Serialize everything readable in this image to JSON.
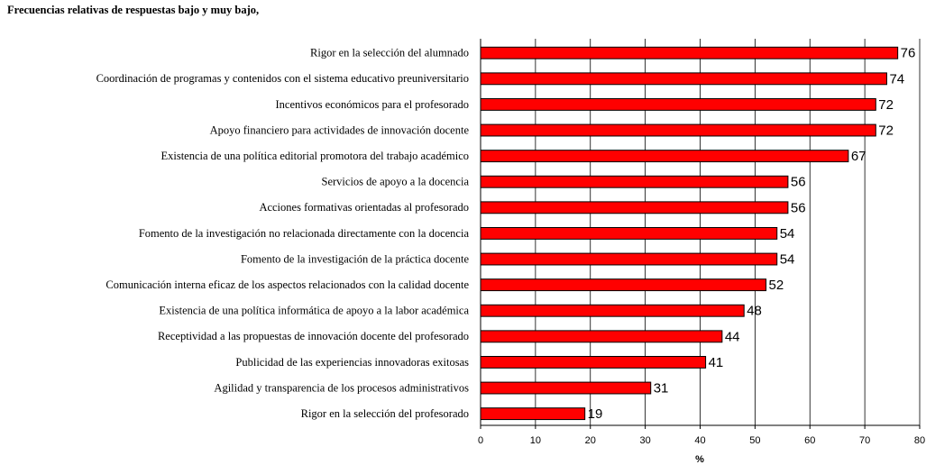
{
  "chart_data": {
    "type": "bar",
    "orientation": "horizontal",
    "title": "Frecuencias relativas de respuestas bajo y muy bajo,",
    "xlabel": "%",
    "categories": [
      "Rigor en la selección del alumnado",
      "Coordinación de programas y contenidos con el sistema educativo preuniversitario",
      "Incentivos económicos para el profesorado",
      "Apoyo financiero para actividades de innovación docente",
      "Existencia de una política editorial promotora del trabajo académico",
      "Servicios de apoyo a la docencia",
      "Acciones formativas orientadas al profesorado",
      "Fomento de la investigación no relacionada directamente con la docencia",
      "Fomento de la investigación de la práctica docente",
      "Comunicación interna eficaz de los aspectos relacionados con la calidad docente",
      "Existencia de una política informática de apoyo a la labor académica",
      "Receptividad a las propuestas de innovación docente del profesorado",
      "Publicidad de las experiencias innovadoras exitosas",
      "Agilidad y transparencia de los procesos administrativos",
      "Rigor en la selección del profesorado"
    ],
    "values": [
      76,
      74,
      72,
      72,
      67,
      56,
      56,
      54,
      54,
      52,
      48,
      44,
      41,
      31,
      19
    ],
    "color": "#ff0000",
    "xlim": [
      0,
      80
    ],
    "xticks": [
      0,
      10,
      20,
      30,
      40,
      50,
      60,
      70,
      80
    ],
    "grid": true
  }
}
